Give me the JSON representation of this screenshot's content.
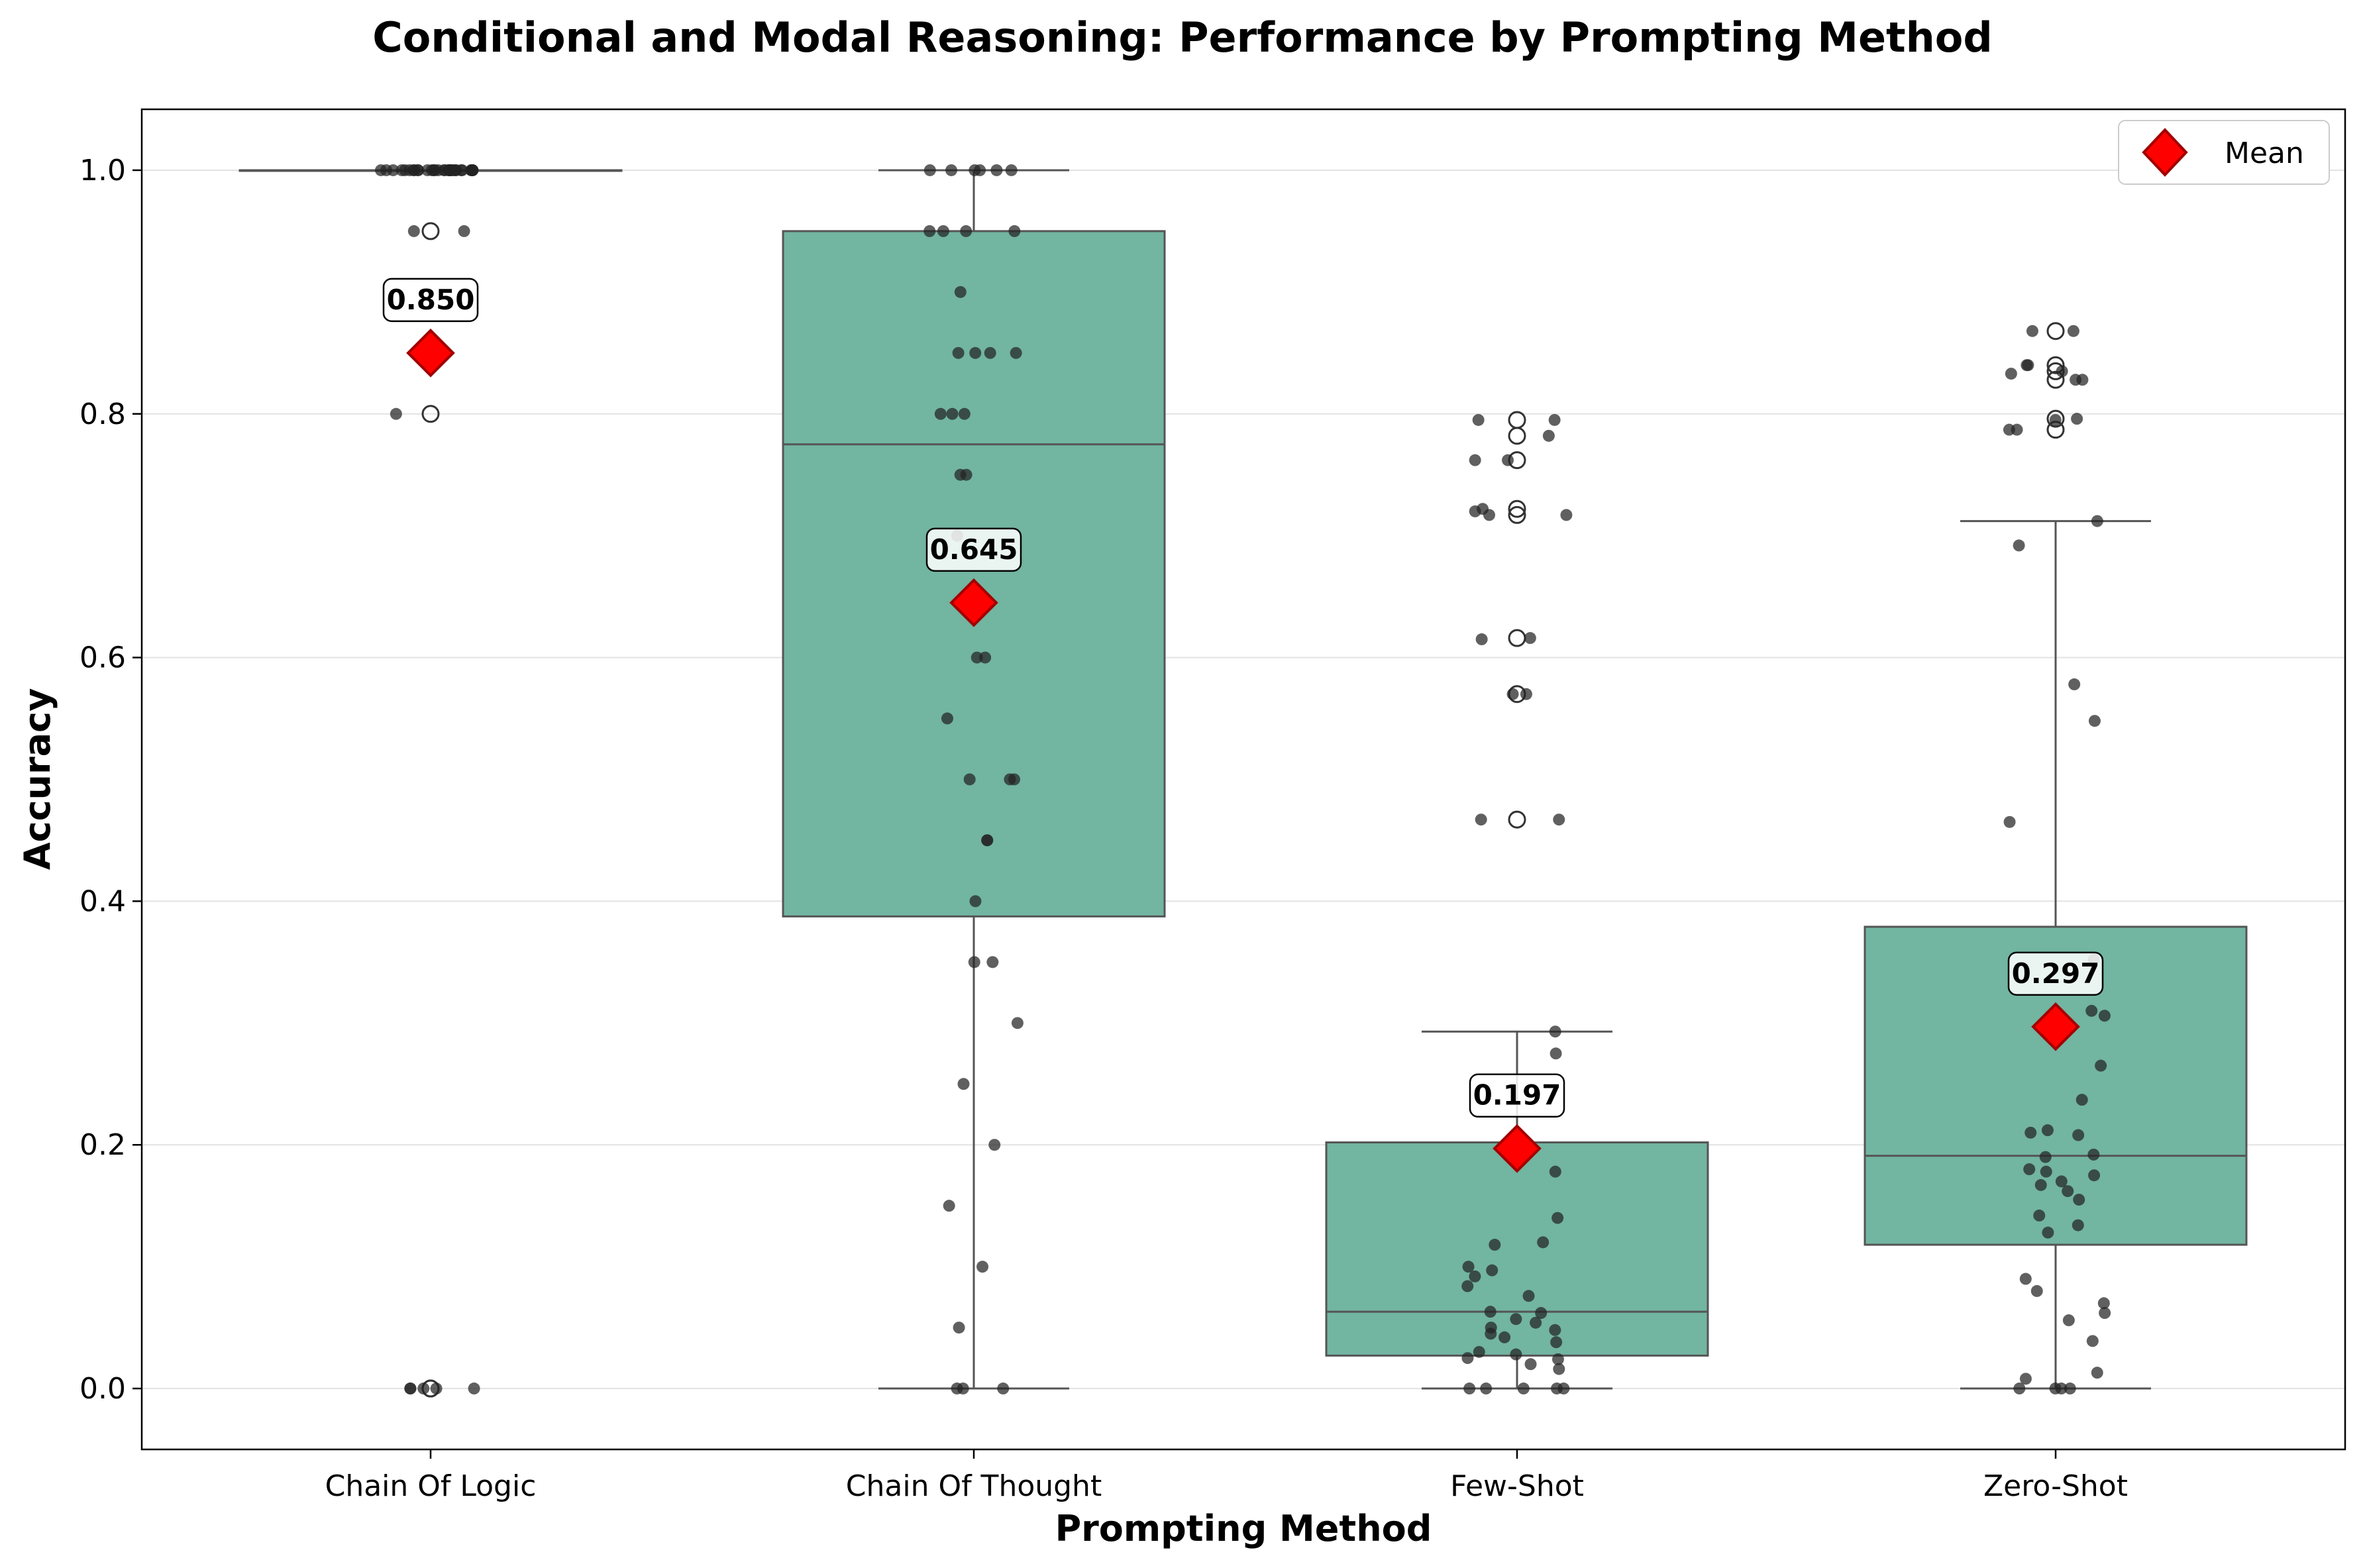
{
  "chart_data": {
    "type": "box",
    "title": "Conditional and Modal Reasoning: Performance by Prompting Method",
    "xlabel": "Prompting Method",
    "ylabel": "Accuracy",
    "ylim": [
      -0.05,
      1.05
    ],
    "yticks": [
      "0.0",
      "0.2",
      "0.4",
      "0.6",
      "0.8",
      "1.0"
    ],
    "ytick_values": [
      0,
      0.2,
      0.4,
      0.6,
      0.8,
      1.0
    ],
    "grid": "horizontal",
    "legend": {
      "position": "top-right",
      "entries": [
        "Mean"
      ]
    },
    "colors": {
      "box_fill": "#72b5a1",
      "box_edge": "#555555",
      "mean_marker": "#ff0000",
      "mean_edge": "#a00000",
      "points": "#222222"
    },
    "categories": [
      "Chain Of Logic",
      "Chain Of Thought",
      "Few-Shot",
      "Zero-Shot"
    ],
    "groups": [
      {
        "name": "Chain Of Logic",
        "q1": 1.0,
        "median": 1.0,
        "q3": 1.0,
        "whisker_low": 1.0,
        "whisker_high": 1.0,
        "mean": 0.85,
        "mean_label": "0.850",
        "outliers": [
          0.95,
          0.8,
          0.0,
          0.0
        ],
        "points": [
          1,
          1,
          1,
          1,
          1,
          1,
          1,
          1,
          1,
          1,
          1,
          1,
          1,
          1,
          1,
          1,
          1,
          1,
          1,
          1,
          1,
          1,
          1,
          1,
          1,
          1,
          1,
          1,
          1,
          1,
          1,
          1,
          0.95,
          0.95,
          0.8,
          0,
          0,
          0,
          0,
          0
        ]
      },
      {
        "name": "Chain Of Thought",
        "q1": 0.3875,
        "median": 0.775,
        "q3": 0.95,
        "whisker_low": 0.0,
        "whisker_high": 1.0,
        "mean": 0.645,
        "mean_label": "0.645",
        "outliers": [],
        "points": [
          1,
          1,
          1,
          1,
          1,
          1,
          0.95,
          0.95,
          0.95,
          0.95,
          0.9,
          0.85,
          0.85,
          0.85,
          0.85,
          0.8,
          0.8,
          0.8,
          0.75,
          0.75,
          0.7,
          0.6,
          0.6,
          0.55,
          0.5,
          0.5,
          0.5,
          0.45,
          0.45,
          0.4,
          0.35,
          0.35,
          0.3,
          0.25,
          0.2,
          0.15,
          0.1,
          0.05,
          0,
          0,
          0
        ]
      },
      {
        "name": "Few-Shot",
        "q1": 0.027,
        "median": 0.063,
        "q3": 0.202,
        "whisker_low": 0.0,
        "whisker_high": 0.293,
        "mean": 0.197,
        "mean_label": "0.197",
        "outliers": [
          0.795,
          0.782,
          0.762,
          0.722,
          0.717,
          0.616,
          0.57,
          0.467
        ],
        "points": [
          0.795,
          0.795,
          0.782,
          0.762,
          0.762,
          0.722,
          0.72,
          0.717,
          0.717,
          0.616,
          0.615,
          0.57,
          0.57,
          0.467,
          0.467,
          0.293,
          0.275,
          0.178,
          0.14,
          0.12,
          0.118,
          0.1,
          0.097,
          0.092,
          0.084,
          0.076,
          0.063,
          0.062,
          0.057,
          0.054,
          0.05,
          0.048,
          0.045,
          0.042,
          0.038,
          0.03,
          0.028,
          0.025,
          0.024,
          0.02,
          0.016,
          0.0,
          0.0,
          0.0,
          0.0,
          0.0
        ]
      },
      {
        "name": "Zero-Shot",
        "q1": 0.118,
        "median": 0.191,
        "q3": 0.379,
        "whisker_low": 0.0,
        "whisker_high": 0.712,
        "mean": 0.297,
        "mean_label": "0.297",
        "outliers": [
          0.868,
          0.84,
          0.835,
          0.828,
          0.796,
          0.787
        ],
        "points": [
          0.868,
          0.868,
          0.84,
          0.84,
          0.835,
          0.833,
          0.828,
          0.828,
          0.796,
          0.795,
          0.787,
          0.787,
          0.712,
          0.692,
          0.578,
          0.548,
          0.465,
          0.352,
          0.31,
          0.306,
          0.265,
          0.237,
          0.212,
          0.21,
          0.208,
          0.192,
          0.19,
          0.18,
          0.178,
          0.175,
          0.17,
          0.167,
          0.162,
          0.155,
          0.142,
          0.134,
          0.128,
          0.09,
          0.08,
          0.07,
          0.062,
          0.056,
          0.039,
          0.013,
          0.008,
          0.0,
          0.0,
          0.0,
          0.0
        ]
      }
    ]
  }
}
